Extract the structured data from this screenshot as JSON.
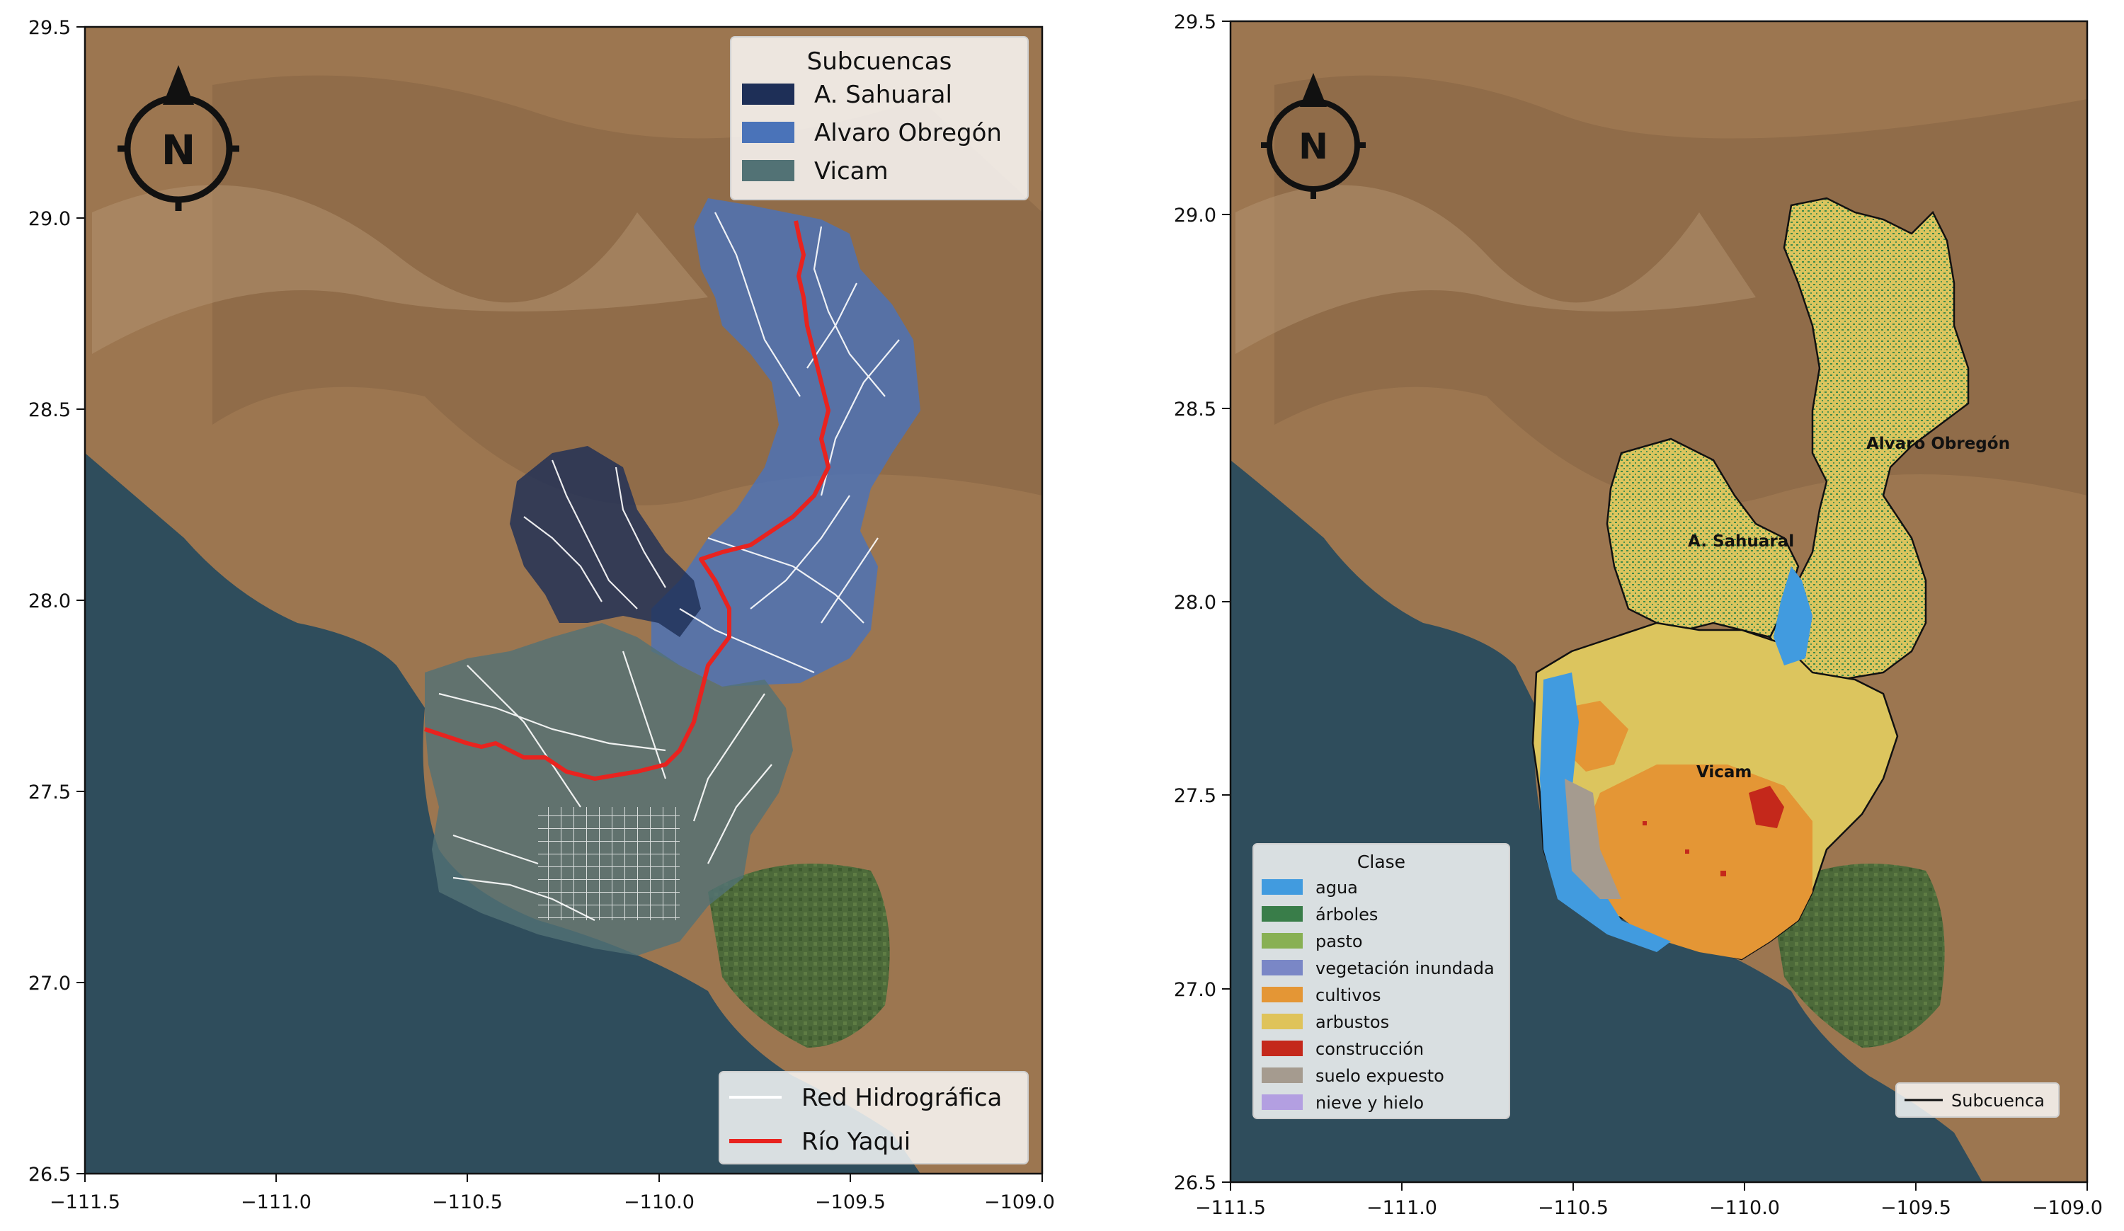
{
  "left_map": {
    "legend_subcuencas": {
      "title": "Subcuencas",
      "items": [
        {
          "label": "A. Sahuaral",
          "color": "#1e2f57"
        },
        {
          "label": "Alvaro Obregón",
          "color": "#4a73b9"
        },
        {
          "label": "Vicam",
          "color": "#527275"
        }
      ]
    },
    "legend_lines": {
      "items": [
        {
          "label": "Red Hidrográfica",
          "color": "#ffffff"
        },
        {
          "label": "Río Yaqui",
          "color": "#e8231f"
        }
      ]
    },
    "x_ticks": [
      "−111.5",
      "−111.0",
      "−110.5",
      "−110.0",
      "−109.5",
      "−109.0"
    ],
    "y_ticks": [
      "29.5",
      "29.0",
      "28.5",
      "28.0",
      "27.5",
      "27.0",
      "26.5"
    ],
    "north_label": "N"
  },
  "right_map": {
    "legend_clase": {
      "title": "Clase",
      "items": [
        {
          "label": "agua",
          "color": "#419bdf"
        },
        {
          "label": "árboles",
          "color": "#397d49"
        },
        {
          "label": "pasto",
          "color": "#88b053"
        },
        {
          "label": "vegetación inundada",
          "color": "#7a87c6"
        },
        {
          "label": "cultivos",
          "color": "#e49635"
        },
        {
          "label": "arbustos",
          "color": "#dfc35a"
        },
        {
          "label": "construcción",
          "color": "#c4281b"
        },
        {
          "label": "suelo expuesto",
          "color": "#a59b8f"
        },
        {
          "label": "nieve y hielo",
          "color": "#b39fe1"
        }
      ]
    },
    "legend_subcuenca": {
      "label": "Subcuenca"
    },
    "basin_labels": [
      "Alvaro Obregón",
      "A. Sahuaral",
      "Vicam"
    ],
    "x_ticks": [
      "−111.5",
      "−111.0",
      "−110.5",
      "−110.0",
      "−109.5",
      "−109.0"
    ],
    "y_ticks": [
      "29.5",
      "29.0",
      "28.5",
      "28.0",
      "27.5",
      "27.0",
      "26.5"
    ],
    "north_label": "N"
  }
}
